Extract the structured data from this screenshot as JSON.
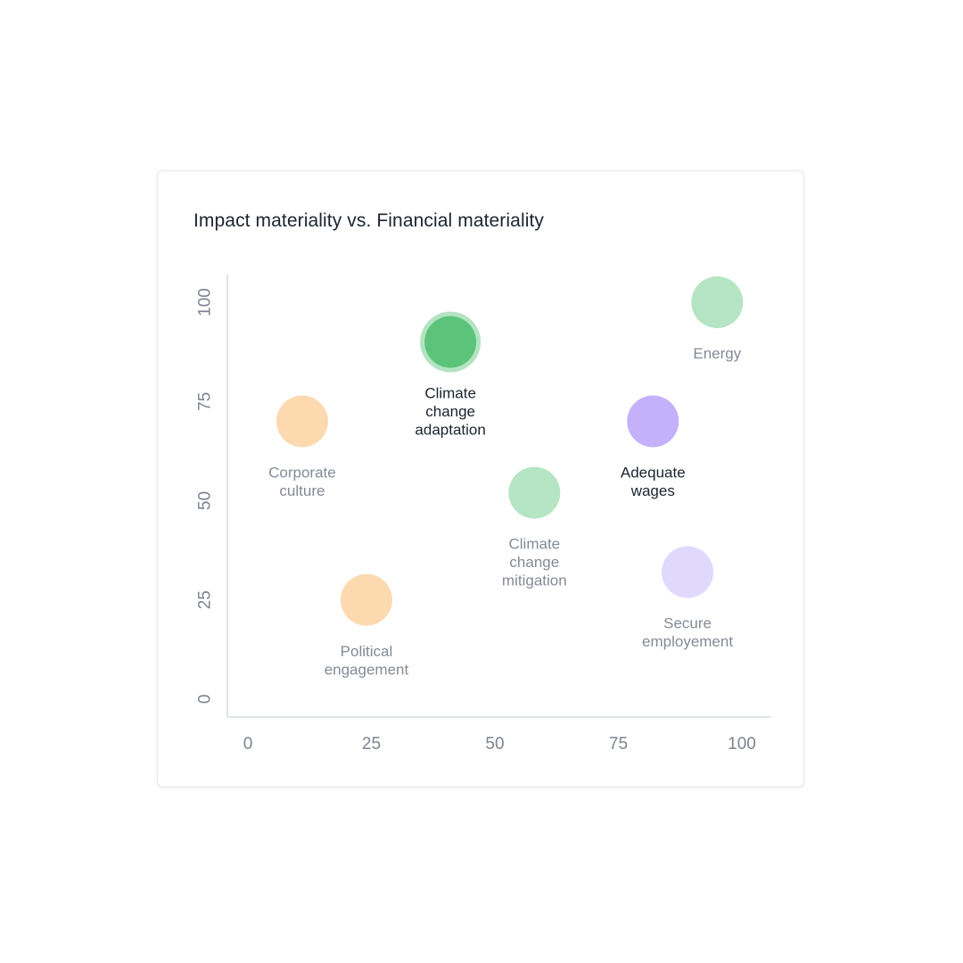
{
  "card": {
    "title": "Impact materiality vs. Financial materiality"
  },
  "chart_data": {
    "type": "scatter",
    "title": "Impact materiality vs. Financial materiality",
    "xlabel": "",
    "ylabel": "",
    "xlim": [
      0,
      100
    ],
    "ylim": [
      0,
      100
    ],
    "x_ticks": [
      "0",
      "25",
      "50",
      "75",
      "100"
    ],
    "y_ticks": [
      "0",
      "25",
      "50",
      "75",
      "100"
    ],
    "grid": false,
    "colors": {
      "orange": "#fdd9b0",
      "green_light": "#b5e5c4",
      "green_strong": "#5bc47a",
      "green_ring": "#b3e3c1",
      "purple_strong": "#c4b0fb",
      "purple_light": "#e0d8fd",
      "label_muted": "#858a96",
      "label_emph": "#1d2330"
    },
    "points": [
      {
        "label": "Corporate culture",
        "lines": [
          "Corporate",
          "culture"
        ],
        "x": 11,
        "y": 70,
        "color": "#fdd9b0",
        "emphasis": false
      },
      {
        "label": "Political engagement",
        "lines": [
          "Political",
          "engagement"
        ],
        "x": 24,
        "y": 25,
        "color": "#fdd9b0",
        "emphasis": false
      },
      {
        "label": "Climate change adaptation",
        "lines": [
          "Climate",
          "change",
          "adaptation"
        ],
        "x": 41,
        "y": 90,
        "color": "#5bc47a",
        "emphasis": true,
        "highlighted": true
      },
      {
        "label": "Climate change mitigation",
        "lines": [
          "Climate",
          "change",
          "mitigation"
        ],
        "x": 58,
        "y": 52,
        "color": "#b5e5c4",
        "emphasis": false
      },
      {
        "label": "Adequate wages",
        "lines": [
          "Adequate",
          "wages"
        ],
        "x": 82,
        "y": 70,
        "color": "#c4b0fb",
        "emphasis": true
      },
      {
        "label": "Secure employement",
        "lines": [
          "Secure",
          "employement"
        ],
        "x": 89,
        "y": 32,
        "color": "#e0d8fd",
        "emphasis": false
      },
      {
        "label": "Energy",
        "lines": [
          "Energy"
        ],
        "x": 95,
        "y": 100,
        "color": "#b5e5c4",
        "emphasis": false
      }
    ]
  }
}
